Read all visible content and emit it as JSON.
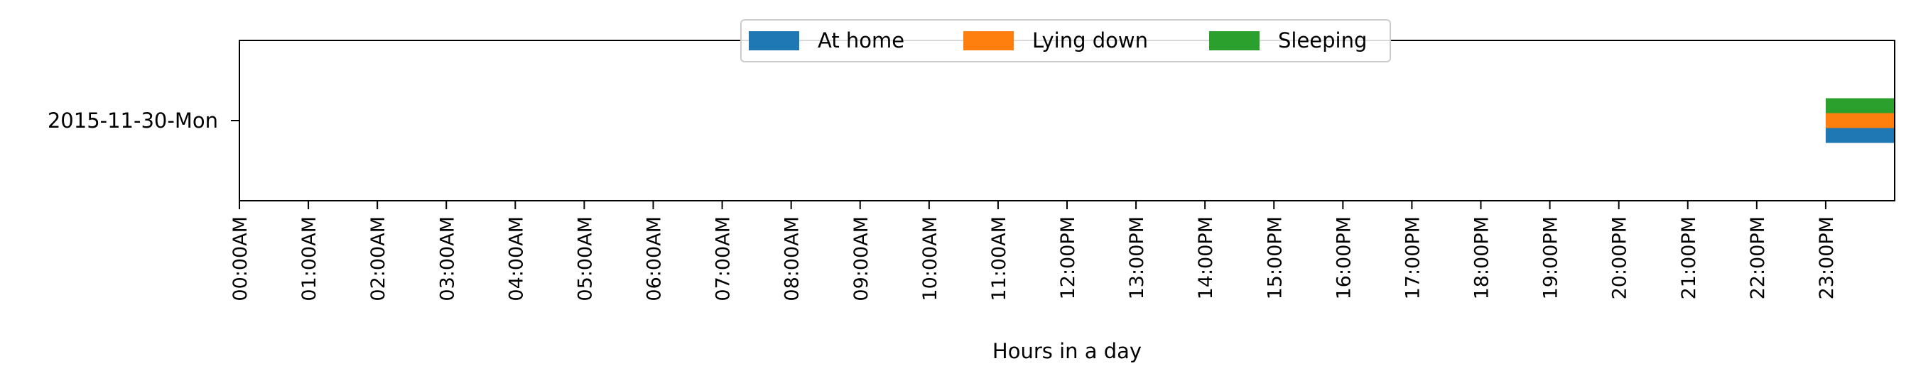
{
  "chart_data": {
    "type": "bar",
    "orientation": "horizontal",
    "xlabel": "Hours in a day",
    "ylabel": "",
    "title": "",
    "xlim": [
      0,
      24
    ],
    "x_tick_values": [
      0,
      1,
      2,
      3,
      4,
      5,
      6,
      7,
      8,
      9,
      10,
      11,
      12,
      13,
      14,
      15,
      16,
      17,
      18,
      19,
      20,
      21,
      22,
      23
    ],
    "x_tick_labels": [
      "00:00AM",
      "01:00AM",
      "02:00AM",
      "03:00AM",
      "04:00AM",
      "05:00AM",
      "06:00AM",
      "07:00AM",
      "08:00AM",
      "09:00AM",
      "10:00AM",
      "11:00AM",
      "12:00PM",
      "13:00PM",
      "14:00PM",
      "15:00PM",
      "16:00PM",
      "17:00PM",
      "18:00PM",
      "19:00PM",
      "20:00PM",
      "21:00PM",
      "22:00PM",
      "23:00PM"
    ],
    "categories": [
      "2015-11-30-Mon"
    ],
    "grid": false,
    "legend_position": "top-center",
    "series": [
      {
        "name": "At home",
        "color": "#1f77b4",
        "intervals": [
          {
            "category": "2015-11-30-Mon",
            "start": 23.0,
            "end": 24.0
          }
        ]
      },
      {
        "name": "Lying down",
        "color": "#ff7f0e",
        "intervals": [
          {
            "category": "2015-11-30-Mon",
            "start": 23.0,
            "end": 24.0
          }
        ]
      },
      {
        "name": "Sleeping",
        "color": "#2ca02c",
        "intervals": [
          {
            "category": "2015-11-30-Mon",
            "start": 23.0,
            "end": 24.0
          }
        ]
      }
    ]
  }
}
